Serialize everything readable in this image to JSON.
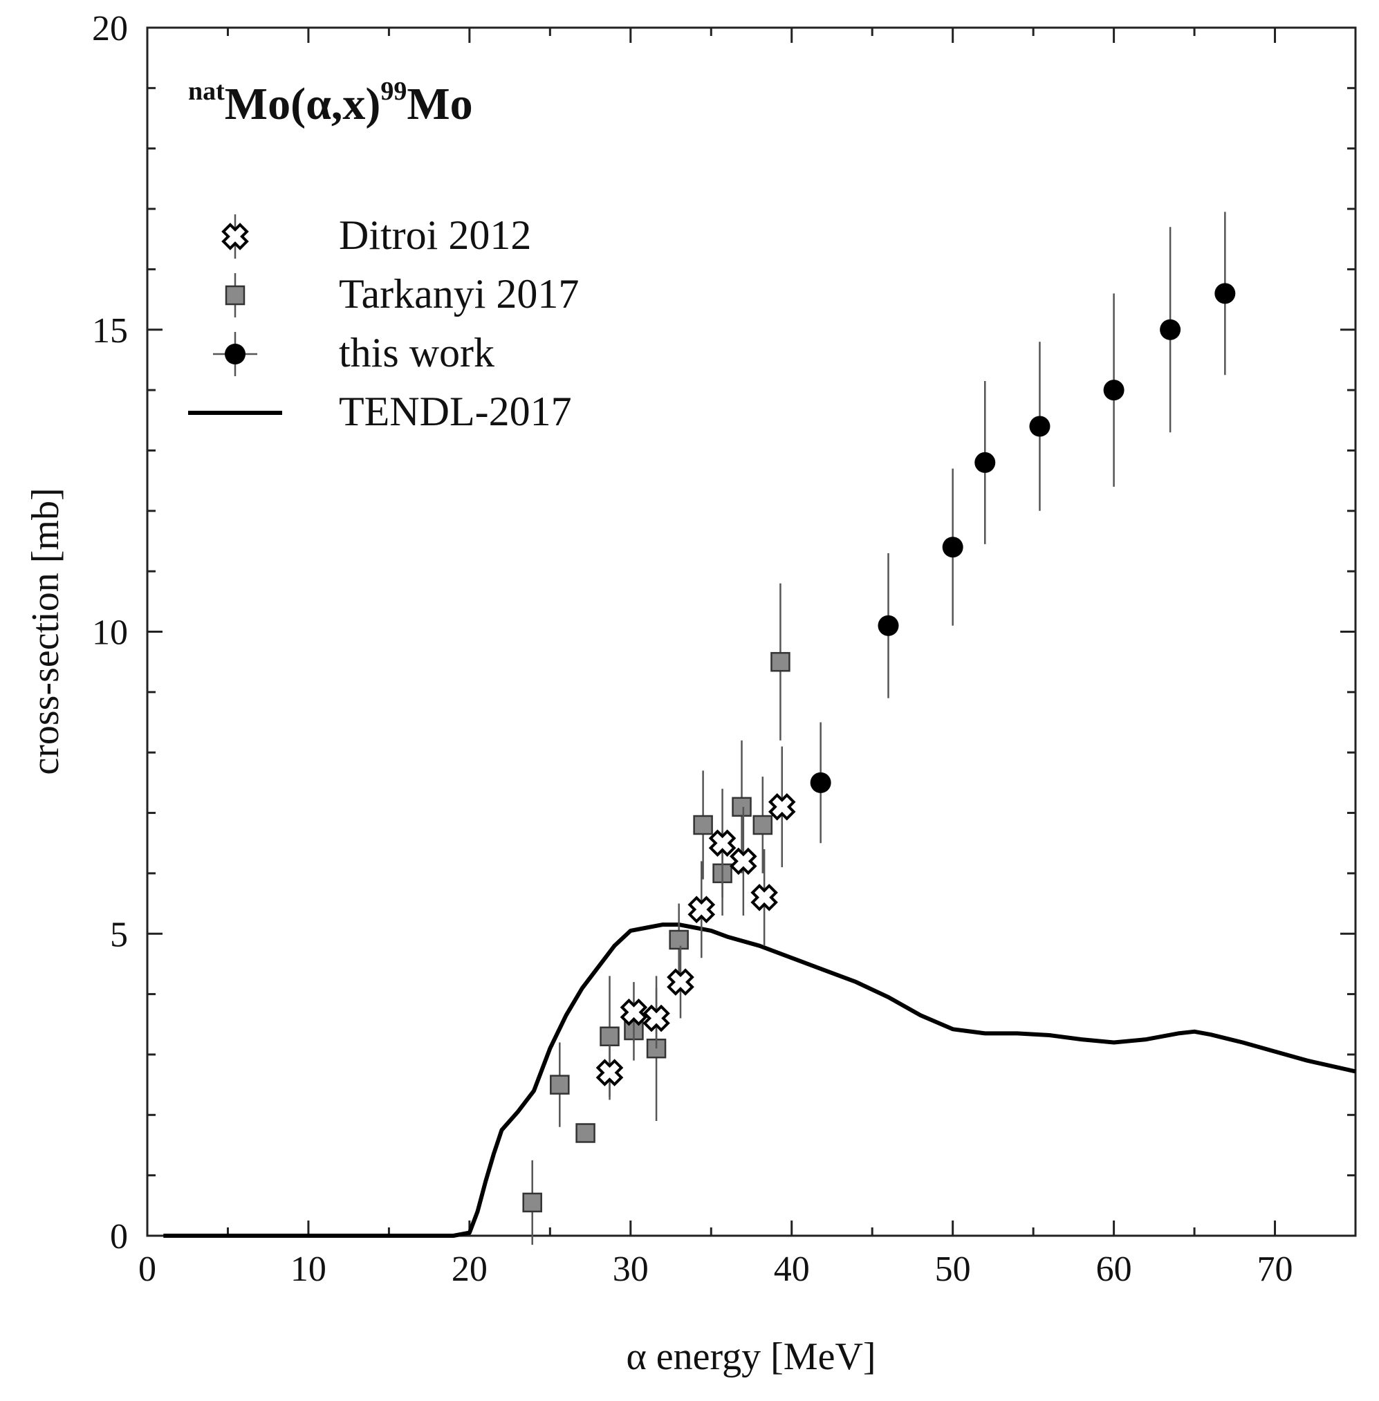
{
  "chart_data": {
    "type": "scatter",
    "title": {
      "prefix_sup": "nat",
      "main": "Mo(α,x)",
      "mid_sup": "99",
      "suffix": "Mo"
    },
    "xlabel": "α energy [MeV]",
    "ylabel": "cross-section [mb]",
    "xlim": [
      0,
      75
    ],
    "ylim": [
      0,
      20
    ],
    "x_major_ticks": [
      0,
      10,
      20,
      30,
      40,
      50,
      60,
      70
    ],
    "x_minor_step": 5,
    "y_major_ticks": [
      0,
      5,
      10,
      15,
      20
    ],
    "y_minor_step": 1,
    "grid": false,
    "legend_position": "top-left",
    "series": [
      {
        "name": "Ditroi 2012",
        "marker": "cross",
        "points": [
          {
            "x": 28.7,
            "y": 2.7,
            "yerr": 0.45
          },
          {
            "x": 30.2,
            "y": 3.7,
            "yerr": 0.5
          },
          {
            "x": 31.6,
            "y": 3.6,
            "yerr": 0.5
          },
          {
            "x": 33.1,
            "y": 4.2,
            "yerr": 0.6
          },
          {
            "x": 34.4,
            "y": 5.4,
            "yerr": 0.8
          },
          {
            "x": 35.7,
            "y": 6.5,
            "yerr": 0.9
          },
          {
            "x": 37.0,
            "y": 6.2,
            "yerr": 0.9
          },
          {
            "x": 38.3,
            "y": 5.6,
            "yerr": 0.8
          },
          {
            "x": 39.4,
            "y": 7.1,
            "yerr": 1.0
          }
        ]
      },
      {
        "name": "Tarkanyi 2017",
        "marker": "square",
        "points": [
          {
            "x": 23.9,
            "y": 0.55,
            "yerr": 0.7
          },
          {
            "x": 25.6,
            "y": 2.5,
            "yerr": 0.7
          },
          {
            "x": 27.2,
            "y": 1.7,
            "yerr": 0.0
          },
          {
            "x": 28.7,
            "y": 3.3,
            "yerr": 1.0
          },
          {
            "x": 30.2,
            "y": 3.4,
            "yerr": 0.5
          },
          {
            "x": 31.6,
            "y": 3.1,
            "yerr": 1.2
          },
          {
            "x": 33.0,
            "y": 4.9,
            "yerr": 0.6
          },
          {
            "x": 34.5,
            "y": 6.8,
            "yerr": 0.9
          },
          {
            "x": 35.7,
            "y": 6.0,
            "yerr": 0.7
          },
          {
            "x": 36.9,
            "y": 7.1,
            "yerr": 1.1
          },
          {
            "x": 38.2,
            "y": 6.8,
            "yerr": 0.8
          },
          {
            "x": 39.3,
            "y": 9.5,
            "yerr": 1.3
          }
        ]
      },
      {
        "name": "this work",
        "marker": "circle",
        "points": [
          {
            "x": 41.8,
            "y": 7.5,
            "yerr": 1.0
          },
          {
            "x": 46.0,
            "y": 10.1,
            "yerr": 1.2
          },
          {
            "x": 50.0,
            "y": 11.4,
            "yerr": 1.3
          },
          {
            "x": 52.0,
            "y": 12.8,
            "yerr": 1.35
          },
          {
            "x": 55.4,
            "y": 13.4,
            "yerr": 1.4
          },
          {
            "x": 60.0,
            "y": 14.0,
            "yerr": 1.6
          },
          {
            "x": 63.5,
            "y": 15.0,
            "yerr": 1.7
          },
          {
            "x": 66.9,
            "y": 15.6,
            "yerr": 1.35
          }
        ]
      },
      {
        "name": "TENDL-2017",
        "marker": "line",
        "x": [
          1,
          19,
          20,
          20.5,
          21,
          21.5,
          22,
          23,
          24,
          25,
          26,
          27,
          28,
          29,
          30,
          31,
          32,
          33,
          34,
          35,
          36,
          38,
          40,
          42,
          44,
          46,
          48,
          50,
          52,
          54,
          56,
          58,
          60,
          62,
          64,
          65,
          66,
          68,
          70,
          72,
          75
        ],
        "y": [
          0,
          0,
          0.05,
          0.4,
          0.9,
          1.35,
          1.75,
          2.05,
          2.4,
          3.1,
          3.65,
          4.1,
          4.45,
          4.8,
          5.05,
          5.1,
          5.15,
          5.15,
          5.1,
          5.05,
          4.95,
          4.8,
          4.6,
          4.4,
          4.2,
          3.95,
          3.65,
          3.42,
          3.35,
          3.35,
          3.32,
          3.25,
          3.2,
          3.25,
          3.35,
          3.38,
          3.33,
          3.2,
          3.05,
          2.9,
          2.72
        ]
      }
    ]
  }
}
